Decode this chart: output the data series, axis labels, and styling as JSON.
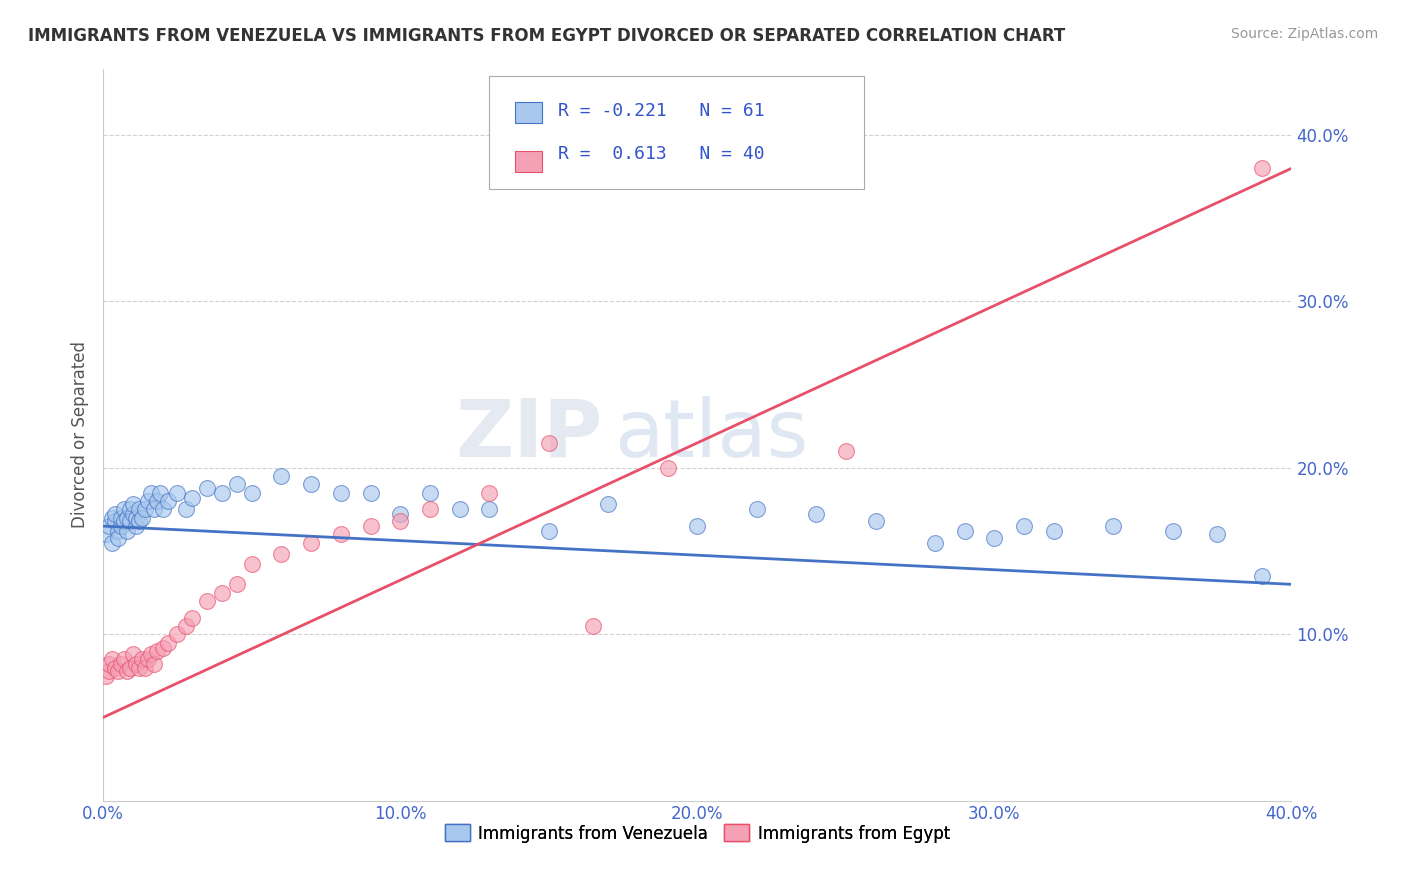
{
  "title": "IMMIGRANTS FROM VENEZUELA VS IMMIGRANTS FROM EGYPT DIVORCED OR SEPARATED CORRELATION CHART",
  "source": "Source: ZipAtlas.com",
  "ylabel": "Divorced or Separated",
  "xlim": [
    0.0,
    0.4
  ],
  "ylim": [
    0.0,
    0.44
  ],
  "xticks": [
    0.0,
    0.1,
    0.2,
    0.3,
    0.4
  ],
  "yticks": [
    0.1,
    0.2,
    0.3,
    0.4
  ],
  "xtick_labels": [
    "0.0%",
    "10.0%",
    "20.0%",
    "30.0%",
    "40.0%"
  ],
  "ytick_labels": [
    "10.0%",
    "20.0%",
    "30.0%",
    "40.0%"
  ],
  "legend_labels": [
    "Immigrants from Venezuela",
    "Immigrants from Egypt"
  ],
  "R_venezuela": -0.221,
  "N_venezuela": 61,
  "R_egypt": 0.613,
  "N_egypt": 40,
  "color_venezuela": "#A8C8EE",
  "color_egypt": "#F4A0B5",
  "line_color_venezuela": "#4472C4",
  "line_color_egypt": "#E8506A",
  "watermark_zip": "ZIP",
  "watermark_atlas": "atlas",
  "background_color": "#FFFFFF",
  "venezuela_x": [
    0.001,
    0.002,
    0.003,
    0.003,
    0.004,
    0.004,
    0.005,
    0.005,
    0.006,
    0.006,
    0.007,
    0.007,
    0.008,
    0.008,
    0.009,
    0.009,
    0.01,
    0.01,
    0.011,
    0.011,
    0.012,
    0.012,
    0.013,
    0.014,
    0.015,
    0.016,
    0.017,
    0.018,
    0.019,
    0.02,
    0.022,
    0.025,
    0.028,
    0.03,
    0.035,
    0.04,
    0.045,
    0.05,
    0.06,
    0.07,
    0.08,
    0.09,
    0.1,
    0.11,
    0.12,
    0.13,
    0.15,
    0.17,
    0.2,
    0.22,
    0.24,
    0.26,
    0.28,
    0.29,
    0.3,
    0.31,
    0.32,
    0.34,
    0.36,
    0.375,
    0.39
  ],
  "venezuela_y": [
    0.16,
    0.165,
    0.17,
    0.155,
    0.168,
    0.172,
    0.162,
    0.158,
    0.165,
    0.17,
    0.175,
    0.168,
    0.162,
    0.17,
    0.175,
    0.168,
    0.172,
    0.178,
    0.165,
    0.17,
    0.175,
    0.168,
    0.17,
    0.175,
    0.18,
    0.185,
    0.175,
    0.18,
    0.185,
    0.175,
    0.18,
    0.185,
    0.175,
    0.182,
    0.188,
    0.185,
    0.19,
    0.185,
    0.195,
    0.19,
    0.185,
    0.185,
    0.172,
    0.185,
    0.175,
    0.175,
    0.162,
    0.178,
    0.165,
    0.175,
    0.172,
    0.168,
    0.155,
    0.162,
    0.158,
    0.165,
    0.162,
    0.165,
    0.162,
    0.16,
    0.135
  ],
  "egypt_x": [
    0.001,
    0.002,
    0.002,
    0.003,
    0.004,
    0.005,
    0.006,
    0.007,
    0.008,
    0.009,
    0.01,
    0.011,
    0.012,
    0.013,
    0.014,
    0.015,
    0.016,
    0.017,
    0.018,
    0.02,
    0.022,
    0.025,
    0.028,
    0.03,
    0.035,
    0.04,
    0.045,
    0.05,
    0.06,
    0.07,
    0.08,
    0.09,
    0.1,
    0.11,
    0.13,
    0.15,
    0.165,
    0.19,
    0.25,
    0.39
  ],
  "egypt_y": [
    0.075,
    0.078,
    0.082,
    0.085,
    0.08,
    0.078,
    0.082,
    0.085,
    0.078,
    0.08,
    0.088,
    0.082,
    0.08,
    0.085,
    0.08,
    0.085,
    0.088,
    0.082,
    0.09,
    0.092,
    0.095,
    0.1,
    0.105,
    0.11,
    0.12,
    0.125,
    0.13,
    0.142,
    0.148,
    0.155,
    0.16,
    0.165,
    0.168,
    0.175,
    0.185,
    0.215,
    0.105,
    0.2,
    0.21,
    0.38
  ]
}
